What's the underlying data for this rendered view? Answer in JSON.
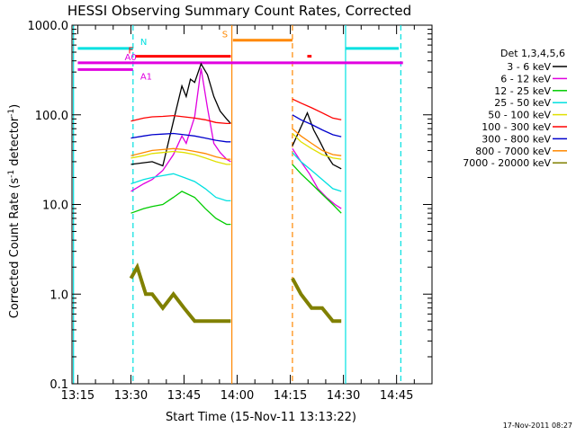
{
  "chart_data": {
    "type": "line",
    "title": "HESSI Observing Summary Count Rates, Corrected",
    "xlabel": "Start Time (15-Nov-11 13:13:22)",
    "ylabel_main": "Corrected Count Rate (s",
    "ylabel_sup1": "-1",
    "ylabel_mid": " detector",
    "ylabel_sup2": "-1",
    "ylabel_end": ")",
    "yscale": "log",
    "ylim": [
      0.1,
      1000
    ],
    "xlim": [
      "13:13:22",
      "14:55:00"
    ],
    "x_ticks": [
      "13:15",
      "13:30",
      "13:45",
      "14:00",
      "14:15",
      "14:30",
      "14:45"
    ],
    "y_ticks": [
      "0.1",
      "1.0",
      "10.0",
      "100.0",
      "1000.0"
    ],
    "footer_date": "17-Nov-2011 08:27",
    "legend_title": "Det 1,3,4,5,6",
    "series": [
      {
        "name": "3 - 6 keV",
        "color": "#000000",
        "values": [
          [
            13.5,
            28
          ],
          [
            13.6,
            30
          ],
          [
            13.65,
            27
          ],
          [
            13.7,
            85
          ],
          [
            13.74,
            210
          ],
          [
            13.76,
            160
          ],
          [
            13.78,
            250
          ],
          [
            13.8,
            230
          ],
          [
            13.83,
            370
          ],
          [
            13.86,
            280
          ],
          [
            13.89,
            160
          ],
          [
            13.92,
            110
          ],
          [
            13.95,
            90
          ],
          [
            13.97,
            80
          ],
          [
            14.26,
            45
          ],
          [
            14.33,
            105
          ],
          [
            14.36,
            68
          ],
          [
            14.39,
            50
          ],
          [
            14.42,
            36
          ],
          [
            14.45,
            28
          ],
          [
            14.49,
            25
          ]
        ]
      },
      {
        "name": "6 - 12 keV",
        "color": "#e000e0",
        "values": [
          [
            13.5,
            14
          ],
          [
            13.56,
            17
          ],
          [
            13.6,
            19
          ],
          [
            13.65,
            24
          ],
          [
            13.7,
            36
          ],
          [
            13.74,
            58
          ],
          [
            13.76,
            48
          ],
          [
            13.8,
            95
          ],
          [
            13.83,
            330
          ],
          [
            13.86,
            120
          ],
          [
            13.89,
            48
          ],
          [
            13.92,
            38
          ],
          [
            13.95,
            32
          ],
          [
            13.97,
            30
          ],
          [
            14.26,
            42
          ],
          [
            14.3,
            30
          ],
          [
            14.34,
            22
          ],
          [
            14.38,
            15
          ],
          [
            14.42,
            12
          ],
          [
            14.46,
            10
          ],
          [
            14.49,
            9
          ]
        ]
      },
      {
        "name": "12 - 25 keV",
        "color": "#00cc00",
        "values": [
          [
            13.5,
            8
          ],
          [
            13.56,
            9
          ],
          [
            13.6,
            9.5
          ],
          [
            13.65,
            10
          ],
          [
            13.7,
            12
          ],
          [
            13.74,
            14
          ],
          [
            13.8,
            12
          ],
          [
            13.85,
            9
          ],
          [
            13.9,
            7
          ],
          [
            13.95,
            6
          ],
          [
            13.97,
            6
          ],
          [
            14.26,
            28
          ],
          [
            14.3,
            22
          ],
          [
            14.35,
            17
          ],
          [
            14.4,
            13
          ],
          [
            14.45,
            10
          ],
          [
            14.49,
            8
          ]
        ]
      },
      {
        "name": "25 - 50 keV",
        "color": "#00e0e0",
        "values": [
          [
            13.5,
            17
          ],
          [
            13.56,
            19
          ],
          [
            13.6,
            20
          ],
          [
            13.65,
            21
          ],
          [
            13.7,
            22
          ],
          [
            13.75,
            20
          ],
          [
            13.8,
            18
          ],
          [
            13.85,
            15
          ],
          [
            13.9,
            12
          ],
          [
            13.95,
            11
          ],
          [
            13.97,
            11
          ],
          [
            14.26,
            38
          ],
          [
            14.3,
            30
          ],
          [
            14.35,
            24
          ],
          [
            14.4,
            19
          ],
          [
            14.45,
            15
          ],
          [
            14.49,
            14
          ]
        ]
      },
      {
        "name": "50 - 100 keV",
        "color": "#e0e000",
        "values": [
          [
            13.5,
            33
          ],
          [
            13.56,
            35
          ],
          [
            13.6,
            37
          ],
          [
            13.65,
            38
          ],
          [
            13.7,
            39
          ],
          [
            13.75,
            38
          ],
          [
            13.8,
            36
          ],
          [
            13.85,
            33
          ],
          [
            13.9,
            30
          ],
          [
            13.95,
            28
          ],
          [
            13.97,
            28
          ],
          [
            14.26,
            62
          ],
          [
            14.3,
            50
          ],
          [
            14.35,
            42
          ],
          [
            14.4,
            36
          ],
          [
            14.45,
            33
          ],
          [
            14.49,
            32
          ]
        ]
      },
      {
        "name": "100 - 300 keV",
        "color": "#ff0000",
        "values": [
          [
            13.5,
            85
          ],
          [
            13.56,
            92
          ],
          [
            13.6,
            95
          ],
          [
            13.65,
            96
          ],
          [
            13.7,
            98
          ],
          [
            13.75,
            95
          ],
          [
            13.8,
            92
          ],
          [
            13.85,
            88
          ],
          [
            13.9,
            82
          ],
          [
            13.95,
            80
          ],
          [
            13.97,
            80
          ],
          [
            14.26,
            150
          ],
          [
            14.3,
            135
          ],
          [
            14.35,
            120
          ],
          [
            14.4,
            105
          ],
          [
            14.45,
            92
          ],
          [
            14.49,
            88
          ]
        ]
      },
      {
        "name": "300 - 800 keV",
        "color": "#0000cc",
        "values": [
          [
            13.5,
            55
          ],
          [
            13.56,
            58
          ],
          [
            13.6,
            60
          ],
          [
            13.65,
            61
          ],
          [
            13.7,
            62
          ],
          [
            13.75,
            60
          ],
          [
            13.8,
            58
          ],
          [
            13.85,
            55
          ],
          [
            13.9,
            52
          ],
          [
            13.95,
            50
          ],
          [
            13.97,
            50
          ],
          [
            14.26,
            100
          ],
          [
            14.3,
            88
          ],
          [
            14.35,
            78
          ],
          [
            14.4,
            68
          ],
          [
            14.45,
            60
          ],
          [
            14.49,
            57
          ]
        ]
      },
      {
        "name": "800 - 7000 keV",
        "color": "#ff8800",
        "values": [
          [
            13.5,
            35
          ],
          [
            13.56,
            38
          ],
          [
            13.6,
            40
          ],
          [
            13.65,
            41
          ],
          [
            13.7,
            42
          ],
          [
            13.75,
            41
          ],
          [
            13.8,
            39
          ],
          [
            13.85,
            37
          ],
          [
            13.9,
            34
          ],
          [
            13.95,
            32
          ],
          [
            13.97,
            32
          ],
          [
            14.26,
            70
          ],
          [
            14.3,
            58
          ],
          [
            14.35,
            48
          ],
          [
            14.4,
            40
          ],
          [
            14.45,
            36
          ],
          [
            14.49,
            35
          ]
        ]
      },
      {
        "name": "7000 - 20000 keV",
        "color": "#808000",
        "values": [
          [
            13.5,
            1.5
          ],
          [
            13.53,
            2
          ],
          [
            13.57,
            1
          ],
          [
            13.6,
            1
          ],
          [
            13.65,
            0.7
          ],
          [
            13.7,
            1
          ],
          [
            13.75,
            0.7
          ],
          [
            13.8,
            0.5
          ],
          [
            13.85,
            0.5
          ],
          [
            13.9,
            0.5
          ],
          [
            13.95,
            0.5
          ],
          [
            13.97,
            0.5
          ],
          [
            14.26,
            1.5
          ],
          [
            14.3,
            1
          ],
          [
            14.35,
            0.7
          ],
          [
            14.4,
            0.7
          ],
          [
            14.45,
            0.5
          ],
          [
            14.49,
            0.5
          ]
        ]
      }
    ],
    "flag_labels": {
      "N": "N",
      "F": "F",
      "A0": "A0",
      "A1": "A1",
      "S": "S"
    },
    "flag_bars": [
      {
        "label": "N",
        "color": "#00e0e0",
        "ranges": [
          [
            13.25,
            13.51
          ],
          [
            14.51,
            14.76
          ]
        ],
        "y": 550
      },
      {
        "label": "F",
        "color": "#ff0000",
        "ranges": [
          [
            13.52,
            13.97
          ],
          [
            14.33,
            14.35
          ]
        ],
        "y": 450
      },
      {
        "label": "A0",
        "color": "#e000e0",
        "ranges": [
          [
            13.25,
            14.78
          ]
        ],
        "y": 380
      },
      {
        "label": "A1",
        "color": "#e000e0",
        "ranges": [
          [
            13.25,
            13.51
          ]
        ],
        "y": 320
      },
      {
        "label": "S",
        "color": "#ff8800",
        "ranges": [
          [
            13.98,
            14.26
          ]
        ],
        "y": 680
      }
    ],
    "vertical_markers": [
      {
        "x": 13.23,
        "color": "#00e0e0",
        "style": "solid"
      },
      {
        "x": 13.51,
        "color": "#00e0e0",
        "style": "dashed"
      },
      {
        "x": 13.975,
        "color": "#ff8800",
        "style": "solid"
      },
      {
        "x": 14.26,
        "color": "#ff8800",
        "style": "dashed"
      },
      {
        "x": 14.51,
        "color": "#00e0e0",
        "style": "solid"
      },
      {
        "x": 14.77,
        "color": "#00e0e0",
        "style": "dashed"
      }
    ]
  }
}
